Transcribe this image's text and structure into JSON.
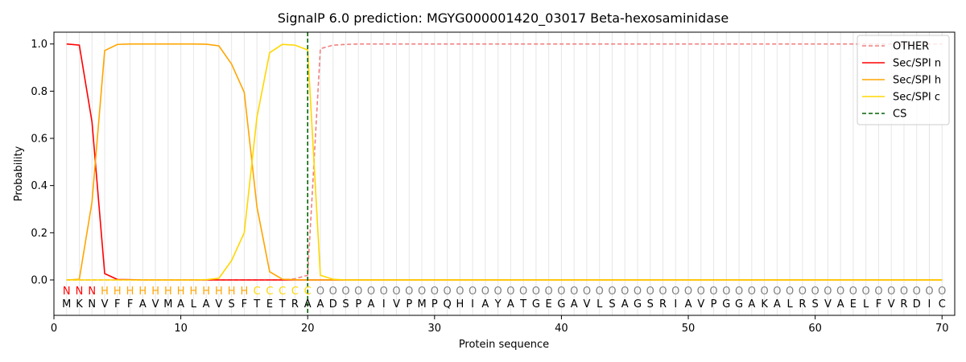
{
  "chart_data": {
    "type": "line",
    "title": "SignalP 6.0 prediction: MGYG000001420_03017 Beta-hexosaminidase",
    "xlabel": "Protein sequence",
    "ylabel": "Probability",
    "xlim": [
      0,
      71
    ],
    "ylim": [
      -0.15,
      1.05
    ],
    "x_ticks": [
      0,
      10,
      20,
      30,
      40,
      50,
      60,
      70
    ],
    "y_ticks": [
      0.0,
      0.2,
      0.4,
      0.6,
      0.8,
      1.0
    ],
    "x_tick_labels": [
      "0",
      "10",
      "20",
      "30",
      "40",
      "50",
      "60",
      "70"
    ],
    "y_tick_labels": [
      "0.0",
      "0.2",
      "0.4",
      "0.6",
      "0.8",
      "1.0"
    ],
    "legend_position": "top-right",
    "sequence": [
      "M",
      "K",
      "N",
      "V",
      "F",
      "F",
      "A",
      "V",
      "M",
      "A",
      "L",
      "A",
      "V",
      "S",
      "F",
      "T",
      "E",
      "T",
      "R",
      "A",
      "A",
      "D",
      "S",
      "P",
      "A",
      "I",
      "V",
      "P",
      "M",
      "P",
      "Q",
      "H",
      "I",
      "A",
      "Y",
      "A",
      "T",
      "G",
      "E",
      "G",
      "A",
      "V",
      "L",
      "S",
      "A",
      "G",
      "S",
      "R",
      "I",
      "A",
      "V",
      "P",
      "G",
      "G",
      "A",
      "K",
      "A",
      "L",
      "R",
      "S",
      "V",
      "A",
      "E",
      "L",
      "F",
      "V",
      "R",
      "D",
      "I",
      "C"
    ],
    "prediction": [
      "N",
      "N",
      "N",
      "H",
      "H",
      "H",
      "H",
      "H",
      "H",
      "H",
      "H",
      "H",
      "H",
      "H",
      "H",
      "C",
      "C",
      "C",
      "C",
      "C",
      "O",
      "O",
      "O",
      "O",
      "O",
      "O",
      "O",
      "O",
      "O",
      "O",
      "O",
      "O",
      "O",
      "O",
      "O",
      "O",
      "O",
      "O",
      "O",
      "O",
      "O",
      "O",
      "O",
      "O",
      "O",
      "O",
      "O",
      "O",
      "O",
      "O",
      "O",
      "O",
      "O",
      "O",
      "O",
      "O",
      "O",
      "O",
      "O",
      "O",
      "O",
      "O",
      "O",
      "O",
      "O",
      "O",
      "O",
      "O",
      "O",
      "O"
    ],
    "label_colors": {
      "N": "#ff0000",
      "H": "#ffa500",
      "C": "#ffd700",
      "O": "#808080"
    },
    "series": [
      {
        "name": "OTHER",
        "color": "#f08080",
        "dash": "dashed",
        "values": [
          0.0,
          0.0,
          0.0,
          0.0,
          0.0,
          0.0,
          0.0,
          0.0,
          0.0,
          0.0,
          0.0,
          0.0,
          0.0,
          0.0,
          0.0,
          0.0,
          0.0,
          0.0,
          0.005,
          0.02,
          0.98,
          0.995,
          0.998,
          1.0,
          1.0,
          1.0,
          1.0,
          1.0,
          1.0,
          1.0,
          1.0,
          1.0,
          1.0,
          1.0,
          1.0,
          1.0,
          1.0,
          1.0,
          1.0,
          1.0,
          1.0,
          1.0,
          1.0,
          1.0,
          1.0,
          1.0,
          1.0,
          1.0,
          1.0,
          1.0,
          1.0,
          1.0,
          1.0,
          1.0,
          1.0,
          1.0,
          1.0,
          1.0,
          1.0,
          1.0,
          1.0,
          1.0,
          1.0,
          1.0,
          1.0,
          1.0,
          1.0,
          1.0,
          1.0,
          1.0
        ]
      },
      {
        "name": "Sec/SPI n",
        "color": "#ff0000",
        "dash": "solid",
        "values": [
          1.0,
          0.995,
          0.67,
          0.027,
          0.002,
          0.001,
          0.0,
          0.0,
          0.0,
          0.0,
          0.0,
          0.0,
          0.0,
          0.0,
          0.0,
          0.0,
          0.0,
          0.0,
          0.0,
          0.0,
          0.0,
          0.0,
          0.0,
          0.0,
          0.0,
          0.0,
          0.0,
          0.0,
          0.0,
          0.0,
          0.0,
          0.0,
          0.0,
          0.0,
          0.0,
          0.0,
          0.0,
          0.0,
          0.0,
          0.0,
          0.0,
          0.0,
          0.0,
          0.0,
          0.0,
          0.0,
          0.0,
          0.0,
          0.0,
          0.0,
          0.0,
          0.0,
          0.0,
          0.0,
          0.0,
          0.0,
          0.0,
          0.0,
          0.0,
          0.0,
          0.0,
          0.0,
          0.0,
          0.0,
          0.0,
          0.0,
          0.0,
          0.0,
          0.0,
          0.0
        ]
      },
      {
        "name": "Sec/SPI h",
        "color": "#ffa500",
        "dash": "solid",
        "values": [
          0.0,
          0.003,
          0.33,
          0.972,
          0.998,
          1.0,
          1.0,
          1.0,
          1.0,
          1.0,
          1.0,
          0.999,
          0.992,
          0.915,
          0.795,
          0.31,
          0.035,
          0.003,
          0.001,
          0.0,
          0.0,
          0.0,
          0.0,
          0.0,
          0.0,
          0.0,
          0.0,
          0.0,
          0.0,
          0.0,
          0.0,
          0.0,
          0.0,
          0.0,
          0.0,
          0.0,
          0.0,
          0.0,
          0.0,
          0.0,
          0.0,
          0.0,
          0.0,
          0.0,
          0.0,
          0.0,
          0.0,
          0.0,
          0.0,
          0.0,
          0.0,
          0.0,
          0.0,
          0.0,
          0.0,
          0.0,
          0.0,
          0.0,
          0.0,
          0.0,
          0.0,
          0.0,
          0.0,
          0.0,
          0.0,
          0.0,
          0.0,
          0.0,
          0.0,
          0.0
        ]
      },
      {
        "name": "Sec/SPI c",
        "color": "#ffd700",
        "dash": "solid",
        "values": [
          0.0,
          0.0,
          0.0,
          0.0,
          0.0,
          0.0,
          0.0,
          0.0,
          0.0,
          0.0,
          0.0,
          0.001,
          0.007,
          0.082,
          0.2,
          0.69,
          0.963,
          0.998,
          0.995,
          0.975,
          0.02,
          0.003,
          0.0,
          0.0,
          0.0,
          0.0,
          0.0,
          0.0,
          0.0,
          0.0,
          0.0,
          0.0,
          0.0,
          0.0,
          0.0,
          0.0,
          0.0,
          0.0,
          0.0,
          0.0,
          0.0,
          0.0,
          0.0,
          0.0,
          0.0,
          0.0,
          0.0,
          0.0,
          0.0,
          0.0,
          0.0,
          0.0,
          0.0,
          0.0,
          0.0,
          0.0,
          0.0,
          0.0,
          0.0,
          0.0,
          0.0,
          0.0,
          0.0,
          0.0,
          0.0,
          0.0,
          0.0,
          0.0,
          0.0,
          0.0
        ]
      },
      {
        "name": "CS",
        "color": "#006400",
        "dash": "dashed",
        "type": "vline",
        "x": 20
      }
    ],
    "grid": "vertical lines at each residue position"
  }
}
